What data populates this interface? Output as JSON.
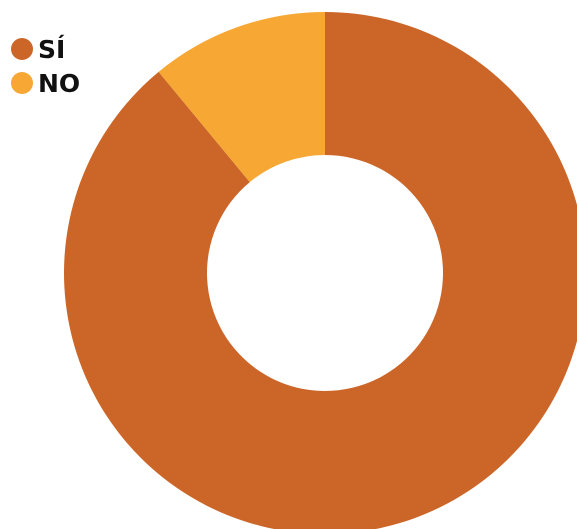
{
  "chart_data": {
    "type": "pie",
    "categories": [
      "SÍ",
      "NO"
    ],
    "values": [
      89,
      11
    ],
    "colors": [
      "#cc6628",
      "#f7a734"
    ],
    "title": "",
    "legend_position": "top-left",
    "donut": true
  },
  "legend": {
    "items": [
      {
        "label": "SÍ",
        "color": "#cc6628"
      },
      {
        "label": "NO",
        "color": "#f7a734"
      }
    ]
  }
}
